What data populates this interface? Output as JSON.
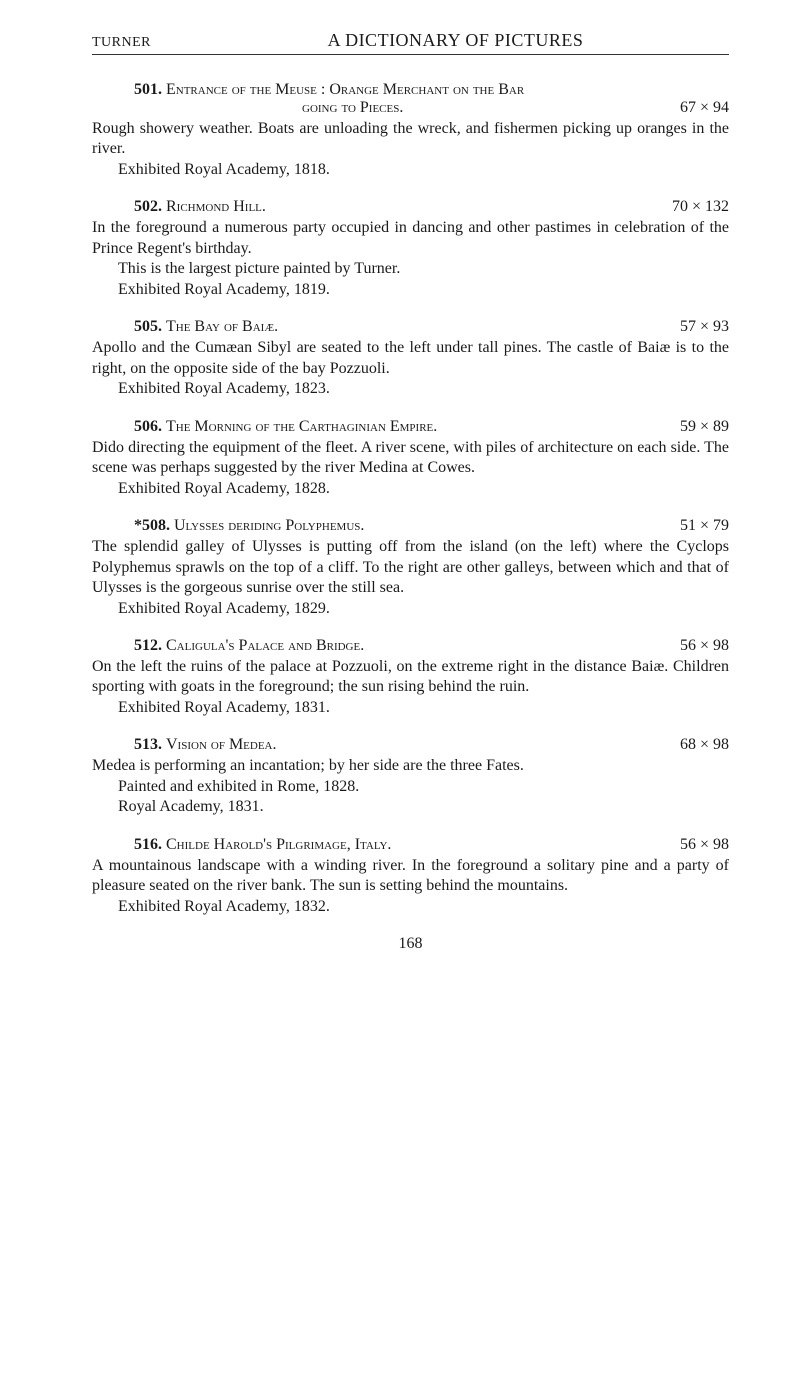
{
  "header": {
    "left": "TURNER",
    "center": "A DICTIONARY OF PICTURES"
  },
  "entries": [
    {
      "num": "501.",
      "title": "Entrance of the Meuse : Orange Merchant on the Bar",
      "title_cont": "going to Pieces.",
      "dims": "67 × 94",
      "paras": [
        "Rough showery weather. Boats are unloading the wreck, and fishermen picking up oranges in the river.",
        "Exhibited Royal Academy, 1818."
      ]
    },
    {
      "num": "502.",
      "title": "Richmond Hill.",
      "dims": "70 × 132",
      "paras": [
        "In the foreground a numerous party occupied in dancing and other pastimes in celebration of the Prince Regent's birthday.",
        "This is the largest picture painted by Turner.",
        "Exhibited Royal Academy, 1819."
      ]
    },
    {
      "num": "505.",
      "title": "The Bay of Baiæ.",
      "dims": "57 × 93",
      "paras": [
        "Apollo and the Cumæan Sibyl are seated to the left under tall pines. The castle of Baiæ is to the right, on the opposite side of the bay Pozzuoli.",
        "Exhibited Royal Academy, 1823."
      ]
    },
    {
      "num": "506.",
      "title": "The Morning of the Carthaginian Empire.",
      "dims": "59 × 89",
      "paras": [
        "Dido directing the equipment of the fleet. A river scene, with piles of architecture on each side. The scene was perhaps suggested by the river Medina at Cowes.",
        "Exhibited Royal Academy, 1828."
      ]
    },
    {
      "num": "*508.",
      "title": "Ulysses deriding Polyphemus.",
      "dims": "51 × 79",
      "paras": [
        "The splendid galley of Ulysses is putting off from the island (on the left) where the Cyclops Polyphemus sprawls on the top of a cliff. To the right are other galleys, between which and that of Ulysses is the gorgeous sunrise over the still sea.",
        "Exhibited Royal Academy, 1829."
      ]
    },
    {
      "num": "512.",
      "title": "Caligula's Palace and Bridge.",
      "dims": "56 × 98",
      "paras": [
        "On the left the ruins of the palace at Pozzuoli, on the extreme right in the distance Baiæ. Children sporting with goats in the foreground; the sun rising behind the ruin.",
        "Exhibited Royal Academy, 1831."
      ]
    },
    {
      "num": "513.",
      "title": "Vision of Medea.",
      "dims": "68 × 98",
      "paras": [
        "Medea is performing an incantation; by her side are the three Fates.",
        "Painted and exhibited in Rome, 1828.",
        "Royal Academy, 1831."
      ]
    },
    {
      "num": "516.",
      "title": "Childe Harold's Pilgrimage, Italy.",
      "dims": "56 × 98",
      "paras": [
        "A mountainous landscape with a winding river. In the foreground a solitary pine and a party of pleasure seated on the river bank. The sun is setting behind the mountains.",
        "Exhibited Royal Academy, 1832."
      ]
    }
  ],
  "pagenum": "168"
}
